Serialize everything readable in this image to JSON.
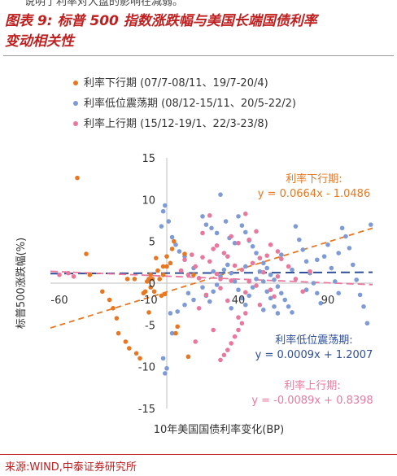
{
  "header": {
    "clipped_text": "说明了利率对大盘的影响在减弱。",
    "title_line1": "图表 9:  标普 500 指数涨跌幅与美国长端国债利率",
    "title_line2": "变动相关性"
  },
  "footer": {
    "source": "来源:WIND,中泰证券研究所"
  },
  "chart_data": {
    "type": "scatter",
    "xlabel": "10年美国国债利率变化(BP)",
    "ylabel": "标普500涨跌幅(%)",
    "xlim": [
      -65,
      115
    ],
    "ylim": [
      -15,
      15
    ],
    "x_ticks": [
      -60,
      -10,
      40,
      90
    ],
    "y_ticks": [
      15,
      10,
      5,
      0,
      -5,
      -10,
      -15
    ],
    "series": [
      {
        "name": "利率下行期 (07/7-08/11、19/7-20/4)",
        "color": "#e87722",
        "trend_label": "利率下行期:",
        "equation": "y = 0.0664x - 1.0486",
        "slope": 0.0664,
        "intercept": -1.0486,
        "x_range": [
          -65,
          115
        ],
        "points": [
          [
            -50,
            12.6
          ],
          [
            -45,
            3.5
          ],
          [
            -43,
            1.0
          ],
          [
            -36,
            -1.0
          ],
          [
            -32,
            -2.0
          ],
          [
            -30,
            -3.0
          ],
          [
            -28,
            -4.2
          ],
          [
            -27,
            -6.0
          ],
          [
            -23,
            -7.0
          ],
          [
            -21,
            -7.8
          ],
          [
            -17,
            -8.4
          ],
          [
            -15,
            -9.0
          ],
          [
            -22,
            0.5
          ],
          [
            -10,
            0.5
          ],
          [
            -12,
            -1.0
          ],
          [
            -9,
            1.0
          ],
          [
            -11,
            0.2
          ],
          [
            -6,
            3.0
          ],
          [
            -4,
            0.5
          ],
          [
            -3,
            -1.5
          ],
          [
            -1,
            -1.3
          ],
          [
            -10,
            -3.5
          ],
          [
            -8,
            0.5
          ],
          [
            0,
            2.0
          ],
          [
            0,
            3.2
          ],
          [
            3,
            4.1
          ],
          [
            4,
            5.0
          ],
          [
            -2,
            1.0
          ],
          [
            -7,
            -1.0
          ],
          [
            -13,
            -1.2
          ],
          [
            -5,
            1.5
          ],
          [
            5,
            -6.0
          ],
          [
            6,
            -5.2
          ],
          [
            2,
            2.4
          ],
          [
            -2,
            2.0
          ],
          [
            -9,
            -0.5
          ],
          [
            12,
            -8.8
          ],
          [
            -18,
            0.5
          ],
          [
            15,
            1.0
          ],
          [
            10,
            3.5
          ]
        ]
      },
      {
        "name": "利率低位震荡期 (08/12-15/11、20/5-22/2)",
        "color": "#7f9bd6",
        "trend_label": "利率低位震荡期:",
        "equation": "y = 0.0009x + 1.2007",
        "slope": 0.0009,
        "intercept": 1.2007,
        "x_range": [
          -65,
          115
        ],
        "points": [
          [
            -1,
            9.3
          ],
          [
            -2,
            8.6
          ],
          [
            1,
            7.4
          ],
          [
            -3,
            6.8
          ],
          [
            3,
            5.5
          ],
          [
            5,
            4.6
          ],
          [
            7,
            3.8
          ],
          [
            10,
            3.2
          ],
          [
            0,
            -10.2
          ],
          [
            -1,
            -10.8
          ],
          [
            -2,
            -9.0
          ],
          [
            3,
            -6.0
          ],
          [
            2,
            -3.6
          ],
          [
            6,
            -3.4
          ],
          [
            10,
            -2.6
          ],
          [
            15,
            -2.0
          ],
          [
            20,
            8.0
          ],
          [
            22,
            7.0
          ],
          [
            25,
            6.6
          ],
          [
            28,
            6.0
          ],
          [
            30,
            10.6
          ],
          [
            33,
            7.4
          ],
          [
            35,
            5.4
          ],
          [
            38,
            4.8
          ],
          [
            40,
            8.0
          ],
          [
            42,
            6.9
          ],
          [
            44,
            6.1
          ],
          [
            46,
            5.1
          ],
          [
            48,
            4.4
          ],
          [
            50,
            3.6
          ],
          [
            52,
            3.0
          ],
          [
            54,
            2.4
          ],
          [
            56,
            1.8
          ],
          [
            58,
            1.0
          ],
          [
            60,
            0.4
          ],
          [
            62,
            -0.4
          ],
          [
            64,
            -1.2
          ],
          [
            66,
            -2.0
          ],
          [
            68,
            -2.8
          ],
          [
            70,
            -3.5
          ],
          [
            15,
            1.8
          ],
          [
            18,
            0.6
          ],
          [
            20,
            -0.5
          ],
          [
            22,
            -1.5
          ],
          [
            24,
            -2.2
          ],
          [
            26,
            -1.0
          ],
          [
            28,
            -0.2
          ],
          [
            30,
            0.8
          ],
          [
            32,
            1.6
          ],
          [
            34,
            2.2
          ],
          [
            36,
            1.2
          ],
          [
            38,
            0.2
          ],
          [
            40,
            -0.8
          ],
          [
            42,
            -1.8
          ],
          [
            44,
            -2.6
          ],
          [
            46,
            -1.5
          ],
          [
            48,
            -0.5
          ],
          [
            50,
            0.5
          ],
          [
            52,
            1.4
          ],
          [
            54,
            0.2
          ],
          [
            56,
            -1.0
          ],
          [
            58,
            -1.8
          ],
          [
            60,
            -2.8
          ],
          [
            62,
            -3.6
          ],
          [
            72,
            6.8
          ],
          [
            74,
            5.2
          ],
          [
            76,
            4.0
          ],
          [
            78,
            2.6
          ],
          [
            80,
            1.2
          ],
          [
            82,
            0.0
          ],
          [
            84,
            -1.2
          ],
          [
            86,
            -2.4
          ],
          [
            88,
            3.2
          ],
          [
            90,
            4.6
          ],
          [
            92,
            1.8
          ],
          [
            94,
            0.2
          ],
          [
            96,
            -1.2
          ],
          [
            98,
            6.6
          ],
          [
            100,
            5.6
          ],
          [
            102,
            4.2
          ],
          [
            104,
            2.2
          ],
          [
            106,
            0.4
          ],
          [
            108,
            -1.4
          ],
          [
            110,
            -2.8
          ],
          [
            112,
            -4.8
          ],
          [
            114,
            7.0
          ],
          [
            12,
            -1.2
          ],
          [
            26,
            1.4
          ],
          [
            36,
            -3.0
          ],
          [
            44,
            2.0
          ],
          [
            54,
            -3.2
          ],
          [
            64,
            3.4
          ],
          [
            70,
            1.6
          ],
          [
            78,
            -0.8
          ],
          [
            84,
            2.8
          ],
          [
            96,
            3.6
          ]
        ]
      },
      {
        "name": "利率上行期 (15/12-19/1、22/3-23/8)",
        "color": "#e8799d",
        "trend_label": "利率上行期:",
        "equation": "y = -0.0089x + 0.8398",
        "slope": -0.0089,
        "intercept": 0.8398,
        "x_range": [
          -65,
          115
        ],
        "points": [
          [
            -60,
            1.0
          ],
          [
            -55,
            1.2
          ],
          [
            -52,
            0.8
          ],
          [
            8,
            1.5
          ],
          [
            10,
            2.8
          ],
          [
            12,
            1.0
          ],
          [
            14,
            3.4
          ],
          [
            16,
            2.0
          ],
          [
            18,
            0.6
          ],
          [
            20,
            3.1
          ],
          [
            22,
            -1.4
          ],
          [
            24,
            2.6
          ],
          [
            26,
            4.1
          ],
          [
            28,
            1.1
          ],
          [
            30,
            -0.6
          ],
          [
            32,
            3.6
          ],
          [
            34,
            -2.1
          ],
          [
            36,
            0.3
          ],
          [
            38,
            2.1
          ],
          [
            40,
            -4.1
          ],
          [
            42,
            1.6
          ],
          [
            44,
            -1.1
          ],
          [
            46,
            5.2
          ],
          [
            48,
            2.4
          ],
          [
            50,
            -0.3
          ],
          [
            52,
            -2.6
          ],
          [
            54,
            1.3
          ],
          [
            56,
            3.3
          ],
          [
            58,
            4.6
          ],
          [
            60,
            -1.6
          ],
          [
            62,
            0.8
          ],
          [
            64,
            2.9
          ],
          [
            30,
            -9.2
          ],
          [
            32,
            -8.6
          ],
          [
            34,
            -8.0
          ],
          [
            36,
            -7.2
          ],
          [
            38,
            -6.4
          ],
          [
            40,
            -5.6
          ],
          [
            42,
            -4.8
          ],
          [
            44,
            -3.6
          ],
          [
            20,
            6.0
          ],
          [
            24,
            8.1
          ],
          [
            28,
            4.5
          ],
          [
            34,
            3.2
          ],
          [
            40,
            4.8
          ],
          [
            46,
            0.2
          ],
          [
            52,
            3.0
          ],
          [
            58,
            -0.8
          ],
          [
            68,
            2.0
          ],
          [
            72,
            0.5
          ],
          [
            76,
            -1.0
          ],
          [
            80,
            1.4
          ],
          [
            18,
            -3.0
          ],
          [
            26,
            -5.6
          ],
          [
            30,
            0.5
          ],
          [
            16,
            -7.0
          ],
          [
            44,
            8.3
          ],
          [
            50,
            6.2
          ],
          [
            36,
            5.6
          ],
          [
            62,
            3.8
          ]
        ]
      }
    ]
  }
}
